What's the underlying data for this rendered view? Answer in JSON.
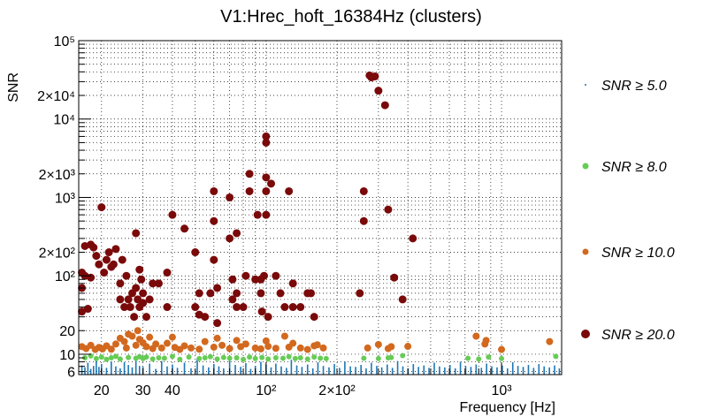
{
  "chart_data": {
    "type": "scatter",
    "title": "V1:Hrec_hoft_16384Hz (clusters)",
    "xlabel": "Frequency [Hz]",
    "ylabel": "SNR",
    "x_scale": "log",
    "y_scale": "log",
    "xlim": [
      16,
      1800
    ],
    "ylim": [
      5.5,
      100000
    ],
    "grid": true,
    "x_ticks": [
      {
        "value": 20,
        "label": "20"
      },
      {
        "value": 30,
        "label": "30"
      },
      {
        "value": 40,
        "label": "40"
      },
      {
        "value": 100,
        "label": "10²"
      },
      {
        "value": 200,
        "label": "2×10²"
      },
      {
        "value": 1000,
        "label": "10³"
      }
    ],
    "y_ticks": [
      {
        "value": 6,
        "label": "6"
      },
      {
        "value": 10,
        "label": "10"
      },
      {
        "value": 20,
        "label": "20"
      },
      {
        "value": 100,
        "label": "10²"
      },
      {
        "value": 200,
        "label": "2×10²"
      },
      {
        "value": 1000,
        "label": "10³"
      },
      {
        "value": 2000,
        "label": "2×10³"
      },
      {
        "value": 10000,
        "label": "10⁴"
      },
      {
        "value": 20000,
        "label": "2×10⁴"
      },
      {
        "value": 100000,
        "label": "10⁵"
      }
    ],
    "legend_position": "right",
    "series": [
      {
        "name": "SNR ≥ 5.0",
        "color": "#1f77b4",
        "marker": "dot",
        "x": [
          16.5,
          17,
          17.5,
          18,
          18.5,
          19,
          19.5,
          20,
          21,
          22,
          23,
          24,
          25,
          26,
          27,
          28,
          29,
          30,
          32,
          34,
          36,
          38,
          40,
          42,
          45,
          48,
          51,
          54,
          57,
          60,
          63,
          66,
          70,
          74,
          78,
          82,
          86,
          90,
          95,
          100,
          105,
          110,
          116,
          122,
          128,
          135,
          142,
          150,
          158,
          166,
          175,
          185,
          195,
          205,
          216,
          228,
          240,
          253,
          266,
          280,
          295,
          310,
          327,
          344,
          362,
          381,
          401,
          422,
          444,
          468,
          492,
          518,
          545,
          574,
          604,
          636,
          669,
          704,
          741,
          780,
          821,
          864,
          909,
          957,
          1007,
          1060,
          1116,
          1174,
          1236,
          1301,
          1369,
          1441,
          1517,
          1597,
          1680,
          1760
        ],
        "y": [
          7.2,
          6.8,
          7.8,
          6.5,
          7.1,
          8.4,
          6.9,
          7.5,
          6.7,
          8.1,
          7.0,
          6.6,
          7.9,
          7.3,
          6.8,
          8.6,
          7.1,
          6.9,
          7.6,
          6.5,
          8.2,
          7.0,
          7.4,
          6.7,
          7.8,
          6.6,
          8.9,
          7.2,
          6.8,
          7.5,
          7.0,
          6.6,
          8.3,
          7.3,
          6.9,
          7.7,
          6.5,
          7.1,
          8.0,
          7.4,
          6.8,
          7.6,
          7.0,
          6.7,
          8.5,
          7.2,
          6.9,
          7.4,
          6.6,
          7.9,
          7.1,
          6.8,
          7.5,
          6.7,
          8.1,
          7.0,
          6.9,
          7.3,
          6.6,
          7.8,
          7.1,
          6.8,
          7.4,
          6.7,
          8.2,
          7.0,
          6.6,
          7.5,
          6.9,
          7.2,
          6.7,
          7.8,
          7.0,
          6.8,
          7.3,
          6.6,
          8.0,
          7.1,
          6.9,
          7.4,
          6.7,
          7.6,
          7.0,
          6.8,
          7.2,
          6.6,
          7.9,
          7.1,
          6.9,
          7.3,
          6.7,
          7.5,
          7.0,
          6.8,
          7.2,
          6.6
        ]
      },
      {
        "name": "SNR ≥ 8.0",
        "color": "#66cc55",
        "marker": "circle-small",
        "x": [
          17,
          18,
          19,
          20,
          21,
          22,
          23,
          24,
          26,
          28,
          29,
          30,
          31,
          33,
          35,
          37,
          40,
          43,
          47,
          52,
          55,
          58,
          62,
          66,
          70,
          75,
          80,
          85,
          90,
          96,
          102,
          110,
          118,
          125,
          133,
          140,
          150,
          160,
          170,
          180,
          260,
          300,
          330,
          340,
          380,
          720,
          800,
          880,
          1000,
          1700
        ],
        "y": [
          9.0,
          9.5,
          8.8,
          9.2,
          8.6,
          9.0,
          9.4,
          8.7,
          9.1,
          8.9,
          9.3,
          8.8,
          9.2,
          8.7,
          9.0,
          8.9,
          9.4,
          8.6,
          9.2,
          8.8,
          9.0,
          9.3,
          8.7,
          9.1,
          8.9,
          9.0,
          8.6,
          9.2,
          8.8,
          9.1,
          8.7,
          9.0,
          8.9,
          9.3,
          8.8,
          9.0,
          8.7,
          9.2,
          8.9,
          8.8,
          8.9,
          8.8,
          9.0,
          9.1,
          9.6,
          8.9,
          8.7,
          9.2,
          8.8,
          9.4
        ]
      },
      {
        "name": "SNR ≥ 10.0",
        "color": "#d2691e",
        "marker": "circle",
        "x": [
          16.5,
          17.2,
          18.0,
          18.8,
          19.5,
          20.2,
          21.0,
          22.0,
          23.0,
          24.0,
          25.0,
          25.5,
          26.0,
          27.0,
          28.0,
          28.5,
          29.0,
          30.0,
          31.0,
          32.0,
          33.0,
          34.0,
          36.0,
          38.0,
          40.0,
          41.0,
          43.0,
          45.0,
          48.0,
          52.0,
          55.0,
          60.0,
          62.0,
          65.0,
          70.0,
          75.0,
          78.0,
          82.0,
          90.0,
          95.0,
          100.0,
          102.0,
          110.0,
          120.0,
          125.0,
          130.0,
          140.0,
          150.0,
          160.0,
          165.0,
          175.0,
          270.0,
          300.0,
          330.0,
          340.0,
          400.0,
          780.0,
          850.0,
          860.0,
          1000.0,
          1600.0
        ],
        "y": [
          12.5,
          11.8,
          13.0,
          11.5,
          12.2,
          11.7,
          12.8,
          11.6,
          13.5,
          16.0,
          14.5,
          12.0,
          18.0,
          17.0,
          13.0,
          20.0,
          15.5,
          14.0,
          12.5,
          16.5,
          11.8,
          13.5,
          12.0,
          13.8,
          16.5,
          12.2,
          11.5,
          12.8,
          12.0,
          11.6,
          14.5,
          12.3,
          16.0,
          13.0,
          11.8,
          15.0,
          12.5,
          13.5,
          12.0,
          11.7,
          14.8,
          12.6,
          11.9,
          17.0,
          12.3,
          13.8,
          12.0,
          11.5,
          12.8,
          13.2,
          12.0,
          12.0,
          13.3,
          11.8,
          12.5,
          12.6,
          17.0,
          13.5,
          15.0,
          11.5,
          14.5
        ]
      },
      {
        "name": "SNR ≥ 20.0",
        "color": "#7a0a0a",
        "marker": "circle-large",
        "x": [
          16.5,
          16.5,
          16.5,
          17.0,
          17.0,
          17.5,
          18.0,
          18.0,
          18.5,
          19.0,
          19.5,
          20.0,
          20.5,
          21.0,
          21.5,
          22.0,
          22.5,
          23.0,
          24.0,
          24.0,
          24.5,
          25.0,
          25.5,
          26.0,
          26.5,
          27.0,
          27.5,
          28.0,
          28.0,
          28.5,
          29.0,
          29.0,
          29.5,
          30.0,
          30.0,
          31.0,
          32.0,
          33.0,
          35.0,
          38.0,
          38.0,
          40.0,
          45.0,
          50.0,
          50.0,
          52.0,
          52.0,
          55.0,
          58.0,
          60.0,
          60.0,
          60.0,
          62.0,
          62.0,
          70.0,
          70.0,
          72.0,
          72.0,
          75.0,
          75.0,
          75.0,
          80.0,
          82.0,
          85.0,
          85.0,
          90.0,
          92.0,
          95.0,
          95.0,
          96.0,
          98.0,
          100.0,
          100.0,
          100.0,
          100.0,
          100.0,
          102.0,
          105.0,
          110.0,
          115.0,
          120.0,
          125.0,
          130.0,
          130.0,
          140.0,
          150.0,
          155.0,
          160.0,
          250.0,
          260.0,
          260.0,
          275.0,
          280.0,
          290.0,
          300.0,
          320.0,
          330.0,
          350.0,
          380.0,
          420.0
        ],
        "y": [
          70,
          110,
          35,
          240,
          100,
          38,
          250,
          95,
          230,
          180,
          140,
          750,
          110,
          160,
          200,
          130,
          140,
          220,
          80,
          50,
          160,
          40,
          100,
          50,
          40,
          60,
          30,
          350,
          70,
          50,
          120,
          40,
          90,
          45,
          60,
          30,
          50,
          80,
          80,
          110,
          40,
          600,
          400,
          40,
          200,
          32,
          60,
          30,
          60,
          1200,
          500,
          160,
          25,
          70,
          1000,
          300,
          90,
          50,
          60,
          350,
          40,
          40,
          100,
          1200,
          2000,
          90,
          600,
          90,
          60,
          35,
          100,
          5000,
          6000,
          1800,
          1200,
          600,
          30,
          1500,
          100,
          60,
          40,
          1200,
          40,
          80,
          40,
          60,
          60,
          30,
          60,
          1200,
          500,
          36000,
          34000,
          35000,
          23000,
          15000,
          700,
          95,
          50,
          300
        ]
      }
    ]
  }
}
